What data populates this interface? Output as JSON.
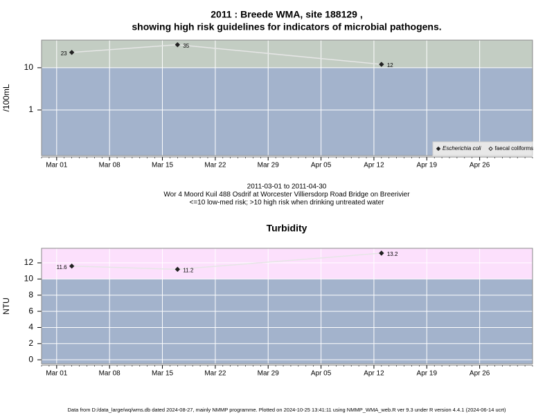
{
  "chart_data": [
    {
      "type": "line",
      "title": [
        "2011 : Breede WMA, site 188129 ,",
        "showing high risk guidelines for indicators of microbial pathogens."
      ],
      "ylabel": "/100mL",
      "log_y": true,
      "ylim": [
        0.083,
        45
      ],
      "yticks": [
        1,
        10
      ],
      "xlim": [
        "2011-02-27",
        "2011-05-03"
      ],
      "xticks": [
        {
          "value": "2011-03-01",
          "label": "Mar 01"
        },
        {
          "value": "2011-03-08",
          "label": "Mar 08"
        },
        {
          "value": "2011-03-15",
          "label": "Mar 15"
        },
        {
          "value": "2011-03-22",
          "label": "Mar 22"
        },
        {
          "value": "2011-03-29",
          "label": "Mar 29"
        },
        {
          "value": "2011-04-05",
          "label": "Apr 05"
        },
        {
          "value": "2011-04-12",
          "label": "Apr 12"
        },
        {
          "value": "2011-04-19",
          "label": "Apr 19"
        },
        {
          "value": "2011-04-26",
          "label": "Apr 26"
        }
      ],
      "x": [
        "2011-03-03",
        "2011-03-17",
        "2011-04-13"
      ],
      "threshold": 10,
      "band_colors": [
        "#a3b3cc",
        "#c3cdc3"
      ],
      "series": [
        {
          "name": "Escherichia coli",
          "color": "#222222",
          "marker": "filled",
          "values": [
            23,
            35,
            12
          ]
        },
        {
          "name": "faecal coliforms",
          "color": "#222222",
          "marker": "open",
          "values": [
            null,
            null,
            null
          ]
        }
      ],
      "legend": "bottom-right",
      "grid": true,
      "notes": [
        "2011-03-01 to 2011-04-30",
        "Wor 4 Moord Kuil 488 Osdrif at Worcester Villiersdorp Road Bridge on Breerivier",
        "<=10 low-med risk; >10 high risk when drinking untreated water"
      ]
    },
    {
      "type": "line",
      "title": [
        "Turbidity"
      ],
      "ylabel": "NTU",
      "log_y": false,
      "ylim": [
        -0.5,
        13.8
      ],
      "yticks": [
        0,
        2,
        4,
        6,
        8,
        10,
        12
      ],
      "xlim": [
        "2011-02-27",
        "2011-05-03"
      ],
      "xticks": [
        {
          "value": "2011-03-01",
          "label": "Mar 01"
        },
        {
          "value": "2011-03-08",
          "label": "Mar 08"
        },
        {
          "value": "2011-03-15",
          "label": "Mar 15"
        },
        {
          "value": "2011-03-22",
          "label": "Mar 22"
        },
        {
          "value": "2011-03-29",
          "label": "Mar 29"
        },
        {
          "value": "2011-04-05",
          "label": "Apr 05"
        },
        {
          "value": "2011-04-12",
          "label": "Apr 12"
        },
        {
          "value": "2011-04-19",
          "label": "Apr 19"
        },
        {
          "value": "2011-04-26",
          "label": "Apr 26"
        }
      ],
      "x": [
        "2011-03-03",
        "2011-03-17",
        "2011-04-13"
      ],
      "threshold": 10,
      "band_colors": [
        "#a3b3cc",
        "#fce0fc"
      ],
      "series": [
        {
          "name": "Turbidity",
          "color": "#222222",
          "marker": "filled",
          "values": [
            11.6,
            11.2,
            13.2
          ]
        }
      ],
      "grid": true
    }
  ],
  "footer": "Data from D:/data_large/wq/wms.db dated 2024-08-27, mainly NMMP programme. Plotted on 2024-10-25 13:41:11 using NMMP_WMA_web.R ver 9.3 under R version 4.4.1 (2024-06-14 ucrt)"
}
